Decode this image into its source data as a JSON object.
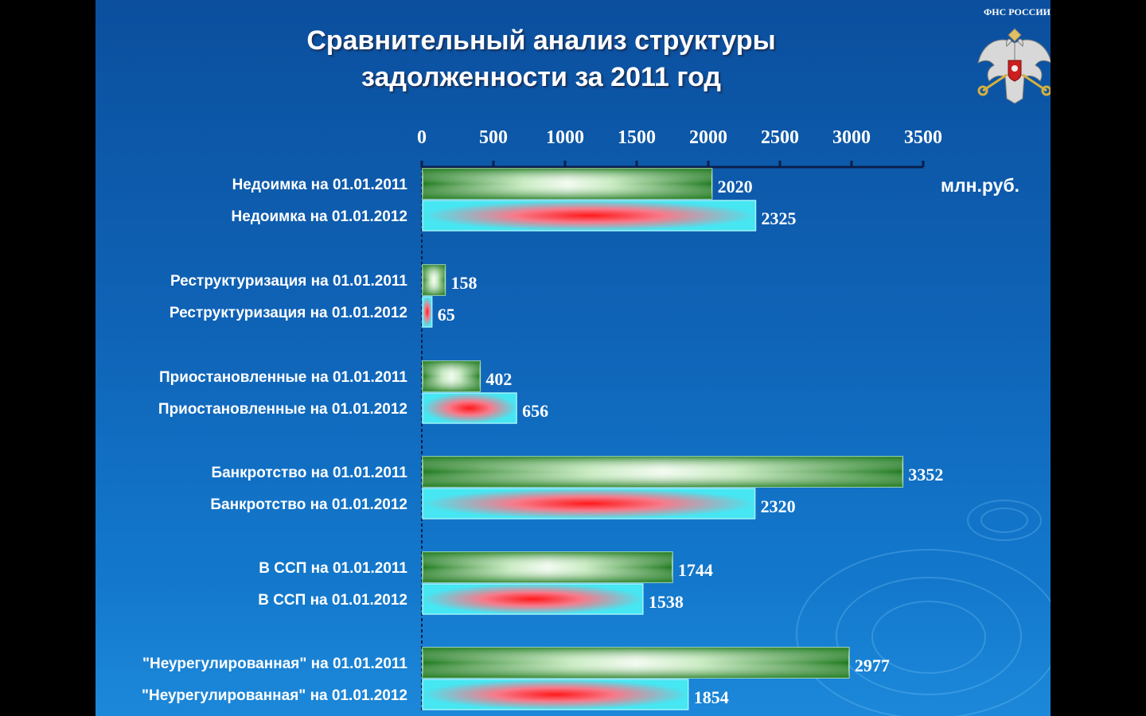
{
  "slide": {
    "title_line1": "Сравнительный анализ структуры",
    "title_line2": "задолженности за 2011 год",
    "emblem_label": "ФНС РОССИИ",
    "unit": "млн.руб.",
    "emblem_icon": "russian-coat-of-arms"
  },
  "chart_data": {
    "type": "bar",
    "orientation": "horizontal",
    "title": "Сравнительный анализ структуры задолженности за 2011 год",
    "unit": "млн.руб.",
    "xlim": [
      0,
      3500
    ],
    "ticks": [
      0,
      500,
      1000,
      1500,
      2000,
      2500,
      3000,
      3500
    ],
    "bars": [
      {
        "label": "Недоимка на 01.01.2011",
        "value": 2020,
        "series": "2011"
      },
      {
        "label": "Недоимка на 01.01.2012",
        "value": 2325,
        "series": "2012"
      },
      {
        "label": "Реструктуризация на 01.01.2011",
        "value": 158,
        "series": "2011"
      },
      {
        "label": "Реструктуризация на 01.01.2012",
        "value": 65,
        "series": "2012"
      },
      {
        "label": "Приостановленные на 01.01.2011",
        "value": 402,
        "series": "2011"
      },
      {
        "label": "Приостановленные на 01.01.2012",
        "value": 656,
        "series": "2012"
      },
      {
        "label": "Банкротство на 01.01.2011",
        "value": 3352,
        "series": "2011"
      },
      {
        "label": "Банкротство на 01.01.2012",
        "value": 2320,
        "series": "2012"
      },
      {
        "label": "В ССП на 01.01.2011",
        "value": 1744,
        "series": "2011"
      },
      {
        "label": "В ССП на 01.01.2012",
        "value": 1538,
        "series": "2012"
      },
      {
        "label": "\"Неурегулированная\" на 01.01.2011",
        "value": 2977,
        "series": "2011"
      },
      {
        "label": "\"Неурегулированная\" на 01.01.2012",
        "value": 1854,
        "series": "2012"
      }
    ],
    "colors": {
      "2011": "#2e8b2e",
      "2012": "#3fe8f0",
      "2012_center": "#ff2020"
    },
    "grid": false
  }
}
